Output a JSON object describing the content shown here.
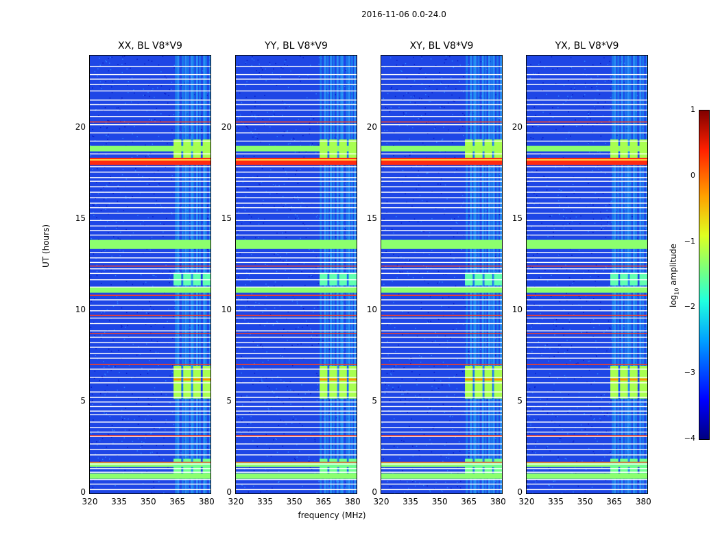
{
  "chart_data": {
    "type": "heatmap",
    "title": "2016-11-06 0.0-24.0",
    "panels": [
      {
        "title": "XX, BL V8*V9"
      },
      {
        "title": "YY, BL V8*V9"
      },
      {
        "title": "XY, BL V8*V9"
      },
      {
        "title": "YX, BL V8*V9"
      }
    ],
    "xlabel": "frequency (MHz)",
    "ylabel": "UT (hours)",
    "xlim": [
      320,
      382
    ],
    "ylim": [
      0,
      24
    ],
    "xticks": [
      "320",
      "335",
      "350",
      "365",
      "380"
    ],
    "xtick_values": [
      320,
      335,
      350,
      365,
      380
    ],
    "yticks": [
      "0",
      "5",
      "10",
      "15",
      "20"
    ],
    "ytick_values": [
      0,
      5,
      10,
      15,
      20
    ],
    "colorbar": {
      "label": "log",
      "label_sub": "10",
      "label_rest": " amplitude",
      "range": [
        -4,
        1
      ],
      "ticks": [
        "−4",
        "−3",
        "−2",
        "−1",
        "0",
        "1"
      ],
      "tick_values": [
        -4,
        -3,
        -2,
        -1,
        0,
        1
      ]
    },
    "rfi_band_mhz": [
      363,
      382
    ],
    "rfi_blocks_mhz": [
      [
        363,
        367
      ],
      [
        368,
        372
      ],
      [
        373,
        377
      ],
      [
        378,
        382
      ]
    ],
    "flagged_hours_white": [
      0.2,
      0.5,
      0.75,
      1.15,
      1.35,
      1.6,
      2.1,
      2.4,
      2.7,
      3.1,
      3.35,
      3.6,
      3.9,
      4.3,
      4.5,
      4.75,
      5.0,
      5.25,
      5.55,
      6.05,
      6.35,
      6.8,
      7.4,
      7.65,
      8.0,
      8.25,
      8.55,
      8.9,
      9.3,
      9.6,
      10.0,
      10.3,
      10.6,
      11.3,
      11.7,
      12.05,
      12.3,
      12.65,
      12.9,
      13.2,
      14.15,
      14.4,
      14.65,
      14.95,
      15.35,
      15.65,
      15.9,
      16.2,
      16.5,
      16.8,
      17.1,
      17.3,
      17.6,
      17.9,
      18.6,
      19.3,
      19.75,
      20.2,
      20.65,
      21.0,
      21.3,
      21.55,
      22.05,
      22.4,
      22.7,
      22.95,
      23.4
    ],
    "flagged_hours_red": [
      1.7,
      3.15,
      7.05,
      8.75,
      9.75,
      10.85,
      12.45,
      20.35
    ],
    "bright_bands_hours": [
      [
        0.8,
        1.1
      ],
      [
        1.45,
        1.7
      ],
      [
        13.4,
        13.9
      ],
      [
        18.75,
        19.05
      ],
      [
        11.0,
        11.3
      ]
    ],
    "saturated_band_hours": [
      18.0,
      18.4
    ]
  }
}
